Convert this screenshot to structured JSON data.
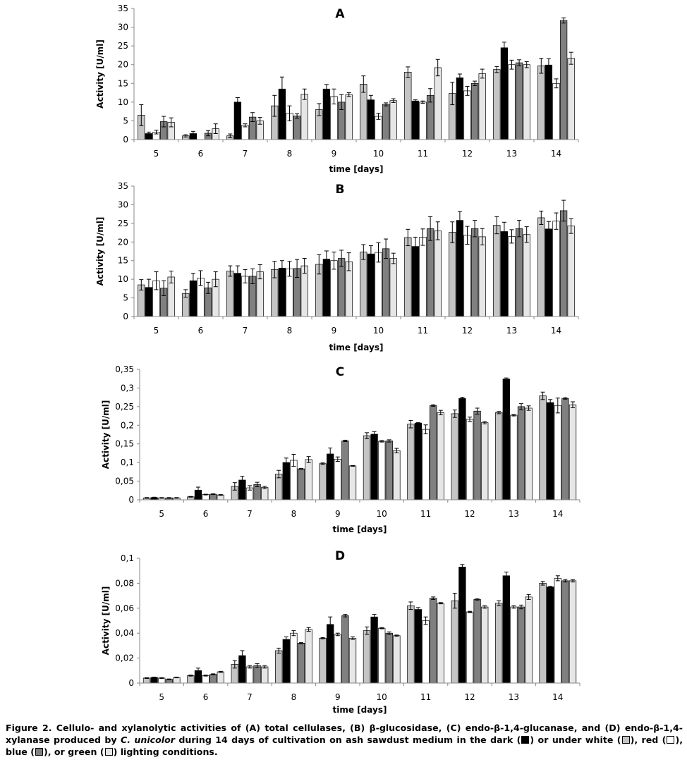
{
  "chart_data": [
    {
      "type": "bar",
      "title": "A",
      "xlabel": "time [days]",
      "ylabel": "Activity [U/ml]",
      "categories": [
        "5",
        "6",
        "7",
        "8",
        "9",
        "10",
        "11",
        "12",
        "13",
        "14"
      ],
      "ylim": [
        0,
        35
      ],
      "yticks": [
        "0",
        "5",
        "10",
        "15",
        "20",
        "25",
        "30",
        "35"
      ],
      "grid": false,
      "series": [
        {
          "values": [
            6.5,
            1.0,
            1.0,
            9.0,
            8.0,
            14.8,
            18.0,
            12.3,
            18.7,
            19.7
          ],
          "errors": [
            2.8,
            0.3,
            0.5,
            2.8,
            1.6,
            2.2,
            1.4,
            3.0,
            0.8,
            2.0
          ]
        },
        {
          "values": [
            1.6,
            1.6,
            10.0,
            13.5,
            13.5,
            10.6,
            10.3,
            16.5,
            24.5,
            19.9
          ],
          "errors": [
            0.4,
            0.6,
            1.2,
            3.2,
            1.2,
            1.2,
            0.3,
            1.0,
            1.5,
            1.7
          ]
        },
        {
          "values": [
            2.0,
            0.0,
            3.8,
            7.0,
            11.5,
            6.2,
            10.0,
            13.0,
            20.0,
            15.0
          ],
          "errors": [
            0.5,
            0.0,
            0.4,
            2.0,
            2.0,
            0.8,
            0.3,
            1.2,
            1.2,
            1.2
          ]
        },
        {
          "values": [
            4.8,
            1.7,
            6.0,
            6.3,
            10.0,
            9.4,
            11.8,
            15.0,
            20.5,
            31.8
          ],
          "errors": [
            1.4,
            0.7,
            1.2,
            0.6,
            2.0,
            0.4,
            1.8,
            0.6,
            0.8,
            0.7
          ]
        },
        {
          "values": [
            4.6,
            2.9,
            5.0,
            12.1,
            12.0,
            10.4,
            19.2,
            17.6,
            20.0,
            21.7
          ],
          "errors": [
            1.2,
            1.3,
            0.9,
            1.4,
            0.5,
            0.5,
            2.2,
            1.2,
            0.8,
            1.6
          ]
        }
      ]
    },
    {
      "type": "bar",
      "title": "B",
      "xlabel": "time [days]",
      "ylabel": "Activity [U/ml]",
      "categories": [
        "5",
        "6",
        "7",
        "8",
        "9",
        "10",
        "11",
        "12",
        "13",
        "14"
      ],
      "ylim": [
        0,
        35
      ],
      "yticks": [
        "0",
        "5",
        "10",
        "15",
        "20",
        "25",
        "30",
        "35"
      ],
      "grid": false,
      "series": [
        {
          "values": [
            8.5,
            6.2,
            12.2,
            12.6,
            14.0,
            17.3,
            21.2,
            22.6,
            24.5,
            26.5
          ],
          "errors": [
            1.4,
            1.0,
            1.4,
            2.2,
            2.6,
            2.0,
            2.2,
            2.8,
            2.3,
            1.8
          ]
        },
        {
          "values": [
            7.8,
            9.6,
            11.6,
            13.0,
            15.4,
            16.8,
            18.8,
            25.8,
            22.8,
            23.5
          ],
          "errors": [
            2.2,
            2.0,
            2.0,
            2.0,
            2.2,
            2.2,
            2.5,
            2.4,
            2.5,
            2.0
          ]
        },
        {
          "values": [
            9.6,
            10.3,
            10.8,
            12.8,
            15.0,
            17.2,
            21.3,
            21.8,
            21.5,
            25.6
          ],
          "errors": [
            2.4,
            2.0,
            1.8,
            2.0,
            2.3,
            2.6,
            2.2,
            2.4,
            1.8,
            2.2
          ]
        },
        {
          "values": [
            7.6,
            7.7,
            10.8,
            12.9,
            15.6,
            18.2,
            23.6,
            23.6,
            23.6,
            28.4
          ],
          "errors": [
            2.0,
            1.5,
            2.0,
            2.4,
            2.2,
            2.6,
            3.2,
            2.2,
            2.2,
            2.8
          ]
        },
        {
          "values": [
            10.6,
            10.0,
            12.0,
            13.6,
            14.7,
            15.6,
            23.0,
            21.4,
            22.0,
            24.3
          ],
          "errors": [
            1.6,
            2.0,
            1.9,
            2.0,
            2.4,
            1.4,
            2.4,
            2.2,
            2.1,
            2.0
          ]
        }
      ]
    },
    {
      "type": "bar",
      "title": "C",
      "xlabel": "time [days]",
      "ylabel": "Activity [U/ml]",
      "categories": [
        "5",
        "6",
        "7",
        "8",
        "9",
        "10",
        "11",
        "12",
        "13",
        "14"
      ],
      "ylim": [
        0,
        0.35
      ],
      "yticks": [
        "0",
        "0,05",
        "0,1",
        "0,15",
        "0,2",
        "0,25",
        "0,3",
        "0,35"
      ],
      "grid": false,
      "series": [
        {
          "values": [
            0.005,
            0.008,
            0.036,
            0.069,
            0.097,
            0.172,
            0.203,
            0.231,
            0.234,
            0.279
          ],
          "errors": [
            0.001,
            0.001,
            0.01,
            0.01,
            0.002,
            0.008,
            0.01,
            0.01,
            0.003,
            0.01
          ]
        },
        {
          "values": [
            0.006,
            0.026,
            0.053,
            0.1,
            0.123,
            0.176,
            0.206,
            0.272,
            0.324,
            0.261
          ],
          "errors": [
            0.001,
            0.008,
            0.01,
            0.012,
            0.016,
            0.007,
            0.001,
            0.003,
            0.003,
            0.008
          ]
        },
        {
          "values": [
            0.005,
            0.014,
            0.032,
            0.106,
            0.109,
            0.157,
            0.189,
            0.216,
            0.227,
            0.253
          ],
          "errors": [
            0.001,
            0.001,
            0.006,
            0.016,
            0.006,
            0.002,
            0.012,
            0.006,
            0.002,
            0.02
          ]
        },
        {
          "values": [
            0.005,
            0.015,
            0.041,
            0.083,
            0.158,
            0.158,
            0.253,
            0.238,
            0.25,
            0.272
          ],
          "errors": [
            0.001,
            0.001,
            0.006,
            0.001,
            0.002,
            0.003,
            0.002,
            0.008,
            0.008,
            0.002
          ]
        },
        {
          "values": [
            0.005,
            0.013,
            0.033,
            0.108,
            0.091,
            0.132,
            0.234,
            0.207,
            0.246,
            0.255
          ],
          "errors": [
            0.001,
            0.001,
            0.003,
            0.008,
            0.001,
            0.006,
            0.006,
            0.003,
            0.006,
            0.008
          ]
        }
      ]
    },
    {
      "type": "bar",
      "title": "D",
      "xlabel": "time [days]",
      "ylabel": "Activity [U/ml]",
      "categories": [
        "5",
        "6",
        "7",
        "8",
        "9",
        "10",
        "11",
        "12",
        "13",
        "14"
      ],
      "ylim": [
        0,
        0.1
      ],
      "yticks": [
        "0",
        "0,02",
        "0,04",
        "0,06",
        "0,08",
        "0,1"
      ],
      "grid": false,
      "series": [
        {
          "values": [
            0.004,
            0.006,
            0.015,
            0.026,
            0.036,
            0.042,
            0.062,
            0.066,
            0.064,
            0.08
          ],
          "errors": [
            0.0003,
            0.0004,
            0.003,
            0.002,
            0.0005,
            0.003,
            0.003,
            0.006,
            0.002,
            0.0015
          ]
        },
        {
          "values": [
            0.0045,
            0.01,
            0.022,
            0.035,
            0.047,
            0.053,
            0.059,
            0.093,
            0.086,
            0.077
          ],
          "errors": [
            0.0003,
            0.002,
            0.004,
            0.002,
            0.006,
            0.002,
            0.0015,
            0.002,
            0.003,
            0.0005
          ]
        },
        {
          "values": [
            0.004,
            0.006,
            0.013,
            0.04,
            0.039,
            0.044,
            0.05,
            0.057,
            0.061,
            0.084
          ],
          "errors": [
            0.0003,
            0.0004,
            0.001,
            0.002,
            0.001,
            0.0005,
            0.003,
            0.0005,
            0.001,
            0.002
          ]
        },
        {
          "values": [
            0.003,
            0.007,
            0.014,
            0.032,
            0.054,
            0.04,
            0.068,
            0.067,
            0.061,
            0.082
          ],
          "errors": [
            0.0003,
            0.0004,
            0.0015,
            0.0004,
            0.001,
            0.001,
            0.001,
            0.0005,
            0.0015,
            0.001
          ]
        },
        {
          "values": [
            0.0045,
            0.009,
            0.013,
            0.043,
            0.036,
            0.038,
            0.064,
            0.061,
            0.069,
            0.082
          ],
          "errors": [
            0.0003,
            0.0004,
            0.001,
            0.0015,
            0.001,
            0.0005,
            0.0005,
            0.001,
            0.002,
            0.001
          ]
        }
      ]
    }
  ],
  "series_colors": [
    "#c4c4c4",
    "#000000",
    "#ffffff",
    "#808080",
    "#e6e6e6"
  ],
  "caption": {
    "lead": "Figure 2. Cellulo- and xylanolytic activities of (A) total cellulases, (B) β-glucosidase, (C) endo-β-1,4-glucanase, and (D) endo-β-1,4-xylanase produced by ",
    "species": "C. unicolor",
    "mid": " during 14 days of cultivation on ash sawdust medium in the dark (",
    "p1": ") or under white (",
    "p2": "), red (",
    "p3": "), blue (",
    "p4": "), or green (",
    "tail": ") lighting conditions."
  }
}
